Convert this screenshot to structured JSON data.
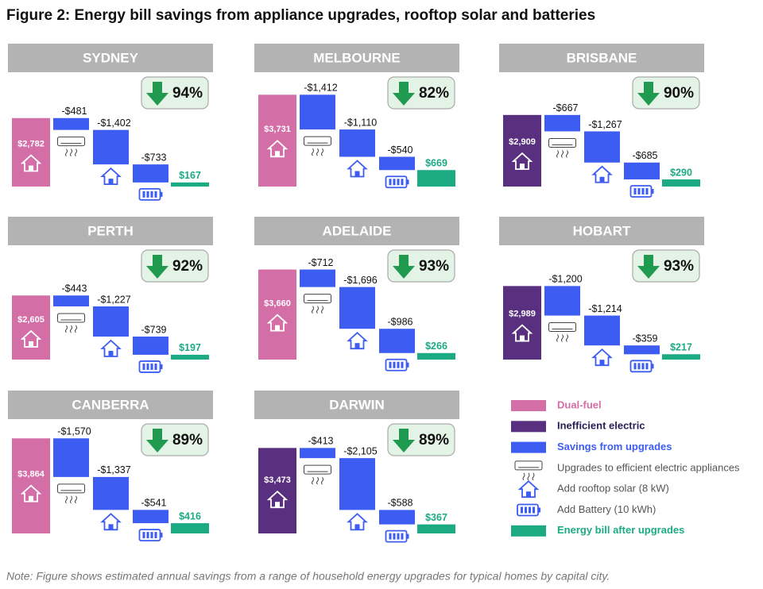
{
  "title": "Figure 2: Energy bill savings from appliance upgrades, rooftop solar and batteries",
  "note": "Note: Figure shows estimated annual savings from a range of household energy upgrades for typical homes by capital city.",
  "savings_color": "#3d5cf2",
  "end_color": "#1caa83",
  "chart_data": [
    {
      "type": "waterfall",
      "title": "SYDNEY",
      "start_color": "#d46ea7",
      "values": [
        2782,
        -481,
        -1402,
        -733,
        167
      ],
      "value_labels": [
        "$2,782",
        "-$481",
        "-$1,402",
        "-$733",
        "$167"
      ],
      "reduction": 94,
      "reduction_label": "94%"
    },
    {
      "type": "waterfall",
      "title": "MELBOURNE",
      "start_color": "#d46ea7",
      "values": [
        3731,
        -1412,
        -1110,
        -540,
        669
      ],
      "value_labels": [
        "$3,731",
        "-$1,412",
        "-$1,110",
        "-$540",
        "$669"
      ],
      "reduction": 82,
      "reduction_label": "82%"
    },
    {
      "type": "waterfall",
      "title": "BRISBANE",
      "start_color": "#58307f",
      "values": [
        2909,
        -667,
        -1267,
        -685,
        290
      ],
      "value_labels": [
        "$2,909",
        "-$667",
        "-$1,267",
        "-$685",
        "$290"
      ],
      "reduction": 90,
      "reduction_label": "90%"
    },
    {
      "type": "waterfall",
      "title": "PERTH",
      "start_color": "#d46ea7",
      "values": [
        2605,
        -443,
        -1227,
        -739,
        197
      ],
      "value_labels": [
        "$2,605",
        "-$443",
        "-$1,227",
        "-$739",
        "$197"
      ],
      "reduction": 92,
      "reduction_label": "92%"
    },
    {
      "type": "waterfall",
      "title": "ADELAIDE",
      "start_color": "#d46ea7",
      "values": [
        3660,
        -712,
        -1696,
        -986,
        266
      ],
      "value_labels": [
        "$3,660",
        "-$712",
        "-$1,696",
        "-$986",
        "$266"
      ],
      "reduction": 93,
      "reduction_label": "93%"
    },
    {
      "type": "waterfall",
      "title": "HOBART",
      "start_color": "#58307f",
      "values": [
        2989,
        -1200,
        -1214,
        -359,
        217
      ],
      "value_labels": [
        "$2,989",
        "-$1,200",
        "-$1,214",
        "-$359",
        "$217"
      ],
      "reduction": 93,
      "reduction_label": "93%"
    },
    {
      "type": "waterfall",
      "title": "CANBERRA",
      "start_color": "#d46ea7",
      "values": [
        3864,
        -1570,
        -1337,
        -541,
        416
      ],
      "value_labels": [
        "$3,864",
        "-$1,570",
        "-$1,337",
        "-$541",
        "$416"
      ],
      "reduction": 89,
      "reduction_label": "89%"
    },
    {
      "type": "waterfall",
      "title": "DARWIN",
      "start_color": "#58307f",
      "values": [
        3473,
        -413,
        -2105,
        -588,
        367
      ],
      "value_labels": [
        "$3,473",
        "-$413",
        "-$2,105",
        "-$588",
        "$367"
      ],
      "reduction": 89,
      "reduction_label": "89%"
    }
  ],
  "legend": [
    {
      "label": "Dual-fuel",
      "color": "#d46ea7"
    },
    {
      "label": "Inefficient electric",
      "color": "#58307f"
    },
    {
      "label": "Savings from upgrades",
      "color": "#3d5cf2"
    },
    {
      "label": "Upgrades to efficient electric appliances",
      "icon": "ac"
    },
    {
      "label": "Add rooftop solar (8 kW)",
      "icon": "house"
    },
    {
      "label": "Add Battery (10 kWh)",
      "icon": "battery"
    },
    {
      "label": "Energy bill after upgrades",
      "color": "#1caa83"
    }
  ]
}
